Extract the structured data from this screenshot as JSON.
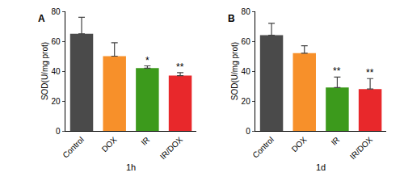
{
  "chart_data": [
    {
      "type": "bar",
      "panel": "A",
      "x_label": "1h",
      "y_label": "SOD(U/mg prot)",
      "categories": [
        "Control",
        "DOX",
        "IR",
        "IR/DOX"
      ],
      "values": [
        65,
        50,
        42,
        37
      ],
      "errors": [
        11,
        9,
        1.5,
        2
      ],
      "significance": [
        null,
        null,
        "*",
        "**"
      ],
      "colors": [
        "#4a4a4a",
        "#f7902a",
        "#3c9a1c",
        "#e8282b"
      ],
      "ylim": [
        0,
        80
      ],
      "yticks": [
        0,
        20,
        40,
        60,
        80
      ],
      "grid": false
    },
    {
      "type": "bar",
      "panel": "B",
      "x_label": "1d",
      "y_label": "SOD(U/mg prot)",
      "categories": [
        "Control",
        "DOX",
        "IR",
        "IR/DOX"
      ],
      "values": [
        64,
        52,
        29,
        28
      ],
      "errors": [
        8,
        5,
        7,
        7
      ],
      "significance": [
        null,
        null,
        "**",
        "**"
      ],
      "colors": [
        "#4a4a4a",
        "#f7902a",
        "#3c9a1c",
        "#e8282b"
      ],
      "ylim": [
        0,
        80
      ],
      "yticks": [
        0,
        20,
        40,
        60,
        80
      ],
      "grid": false
    }
  ]
}
